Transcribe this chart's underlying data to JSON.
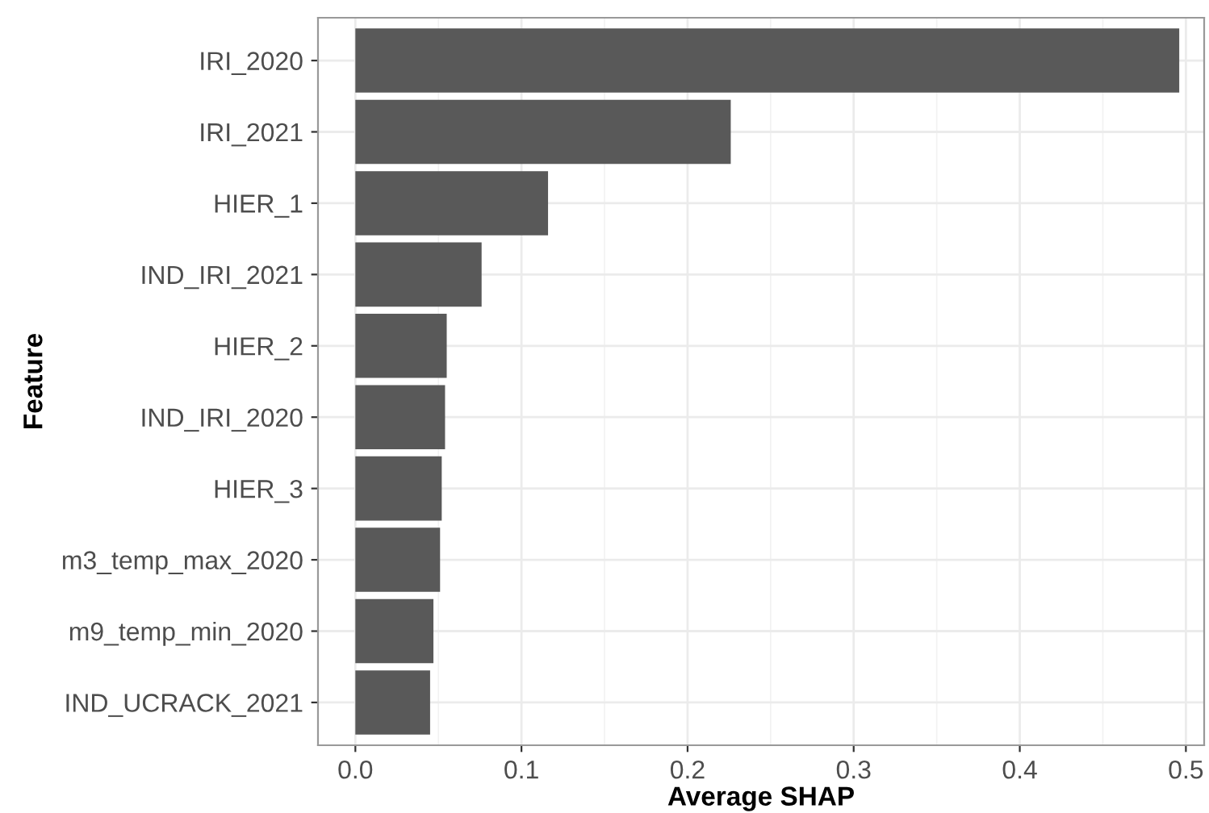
{
  "chart_data": {
    "type": "bar",
    "orientation": "horizontal",
    "xlabel": "Average SHAP",
    "ylabel": "Feature",
    "categories": [
      "IRI_2020",
      "IRI_2021",
      "HIER_1",
      "IND_IRI_2021",
      "HIER_2",
      "IND_IRI_2020",
      "HIER_3",
      "m3_temp_max_2020",
      "m9_temp_min_2020",
      "IND_UCRACK_2021"
    ],
    "values": [
      0.496,
      0.226,
      0.116,
      0.076,
      0.055,
      0.054,
      0.052,
      0.051,
      0.047,
      0.045
    ],
    "color": "#595959",
    "xlim": [
      -0.0225,
      0.511
    ],
    "xticks": [
      {
        "value": 0,
        "label": "0.0"
      },
      0.1,
      0.2,
      0.3,
      0.4,
      0.5
    ],
    "grid": true
  }
}
